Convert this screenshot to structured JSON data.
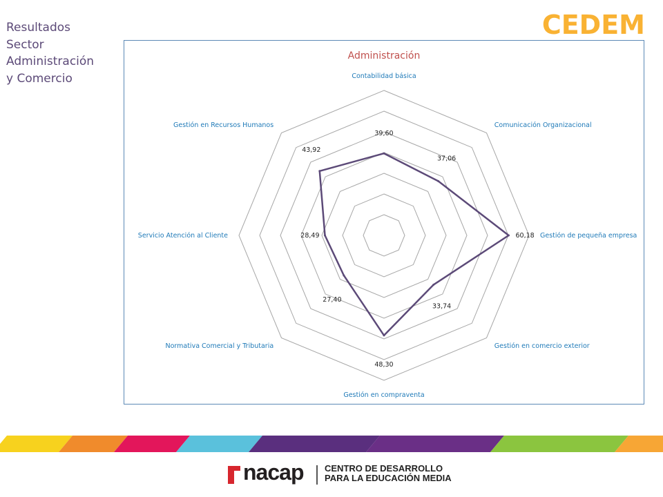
{
  "slide": {
    "title_lines": [
      "Resultados",
      "Sector",
      "Administración",
      "y Comercio"
    ],
    "brand": "CEDEM"
  },
  "footer": {
    "logo_word": "nacap",
    "tagline_lines": [
      "CENTRO DE DESARROLLO",
      "PARA LA EDUCACIÓN MEDIA"
    ],
    "stripe_colors": [
      "#f7d21e",
      "#f08b2c",
      "#e3165b",
      "#5ac1dc",
      "#5a2f7e",
      "#6a2f86",
      "#8bc53f",
      "#f7a635"
    ]
  },
  "chart_data": {
    "type": "radar",
    "title": "Administración",
    "categories": [
      "Contabilidad básica",
      "Comunicación Organizacional",
      "Gestión de pequeña empresa",
      "Gestión en comercio exterior",
      "Gestión en compraventa",
      "Normativa Comercial y Tributaria",
      "Servicio Atención al Cliente",
      "Gestión en Recursos Humanos"
    ],
    "series": [
      {
        "values": [
          39.6,
          37.06,
          60.18,
          33.74,
          48.3,
          27.4,
          28.49,
          43.92
        ],
        "labels": [
          "39,60",
          "37,06",
          "60,18",
          "33,74",
          "48,30",
          "27,40",
          "28,49",
          "43,92"
        ],
        "color": "#5c4a78"
      }
    ],
    "rlim": [
      0,
      70
    ],
    "grid_step": 10,
    "legend": false,
    "colors": {
      "title": "#c0504d",
      "category_labels": "#1f7ab8",
      "grid": "#a6a6a6",
      "frame": "#5b88b5"
    }
  }
}
